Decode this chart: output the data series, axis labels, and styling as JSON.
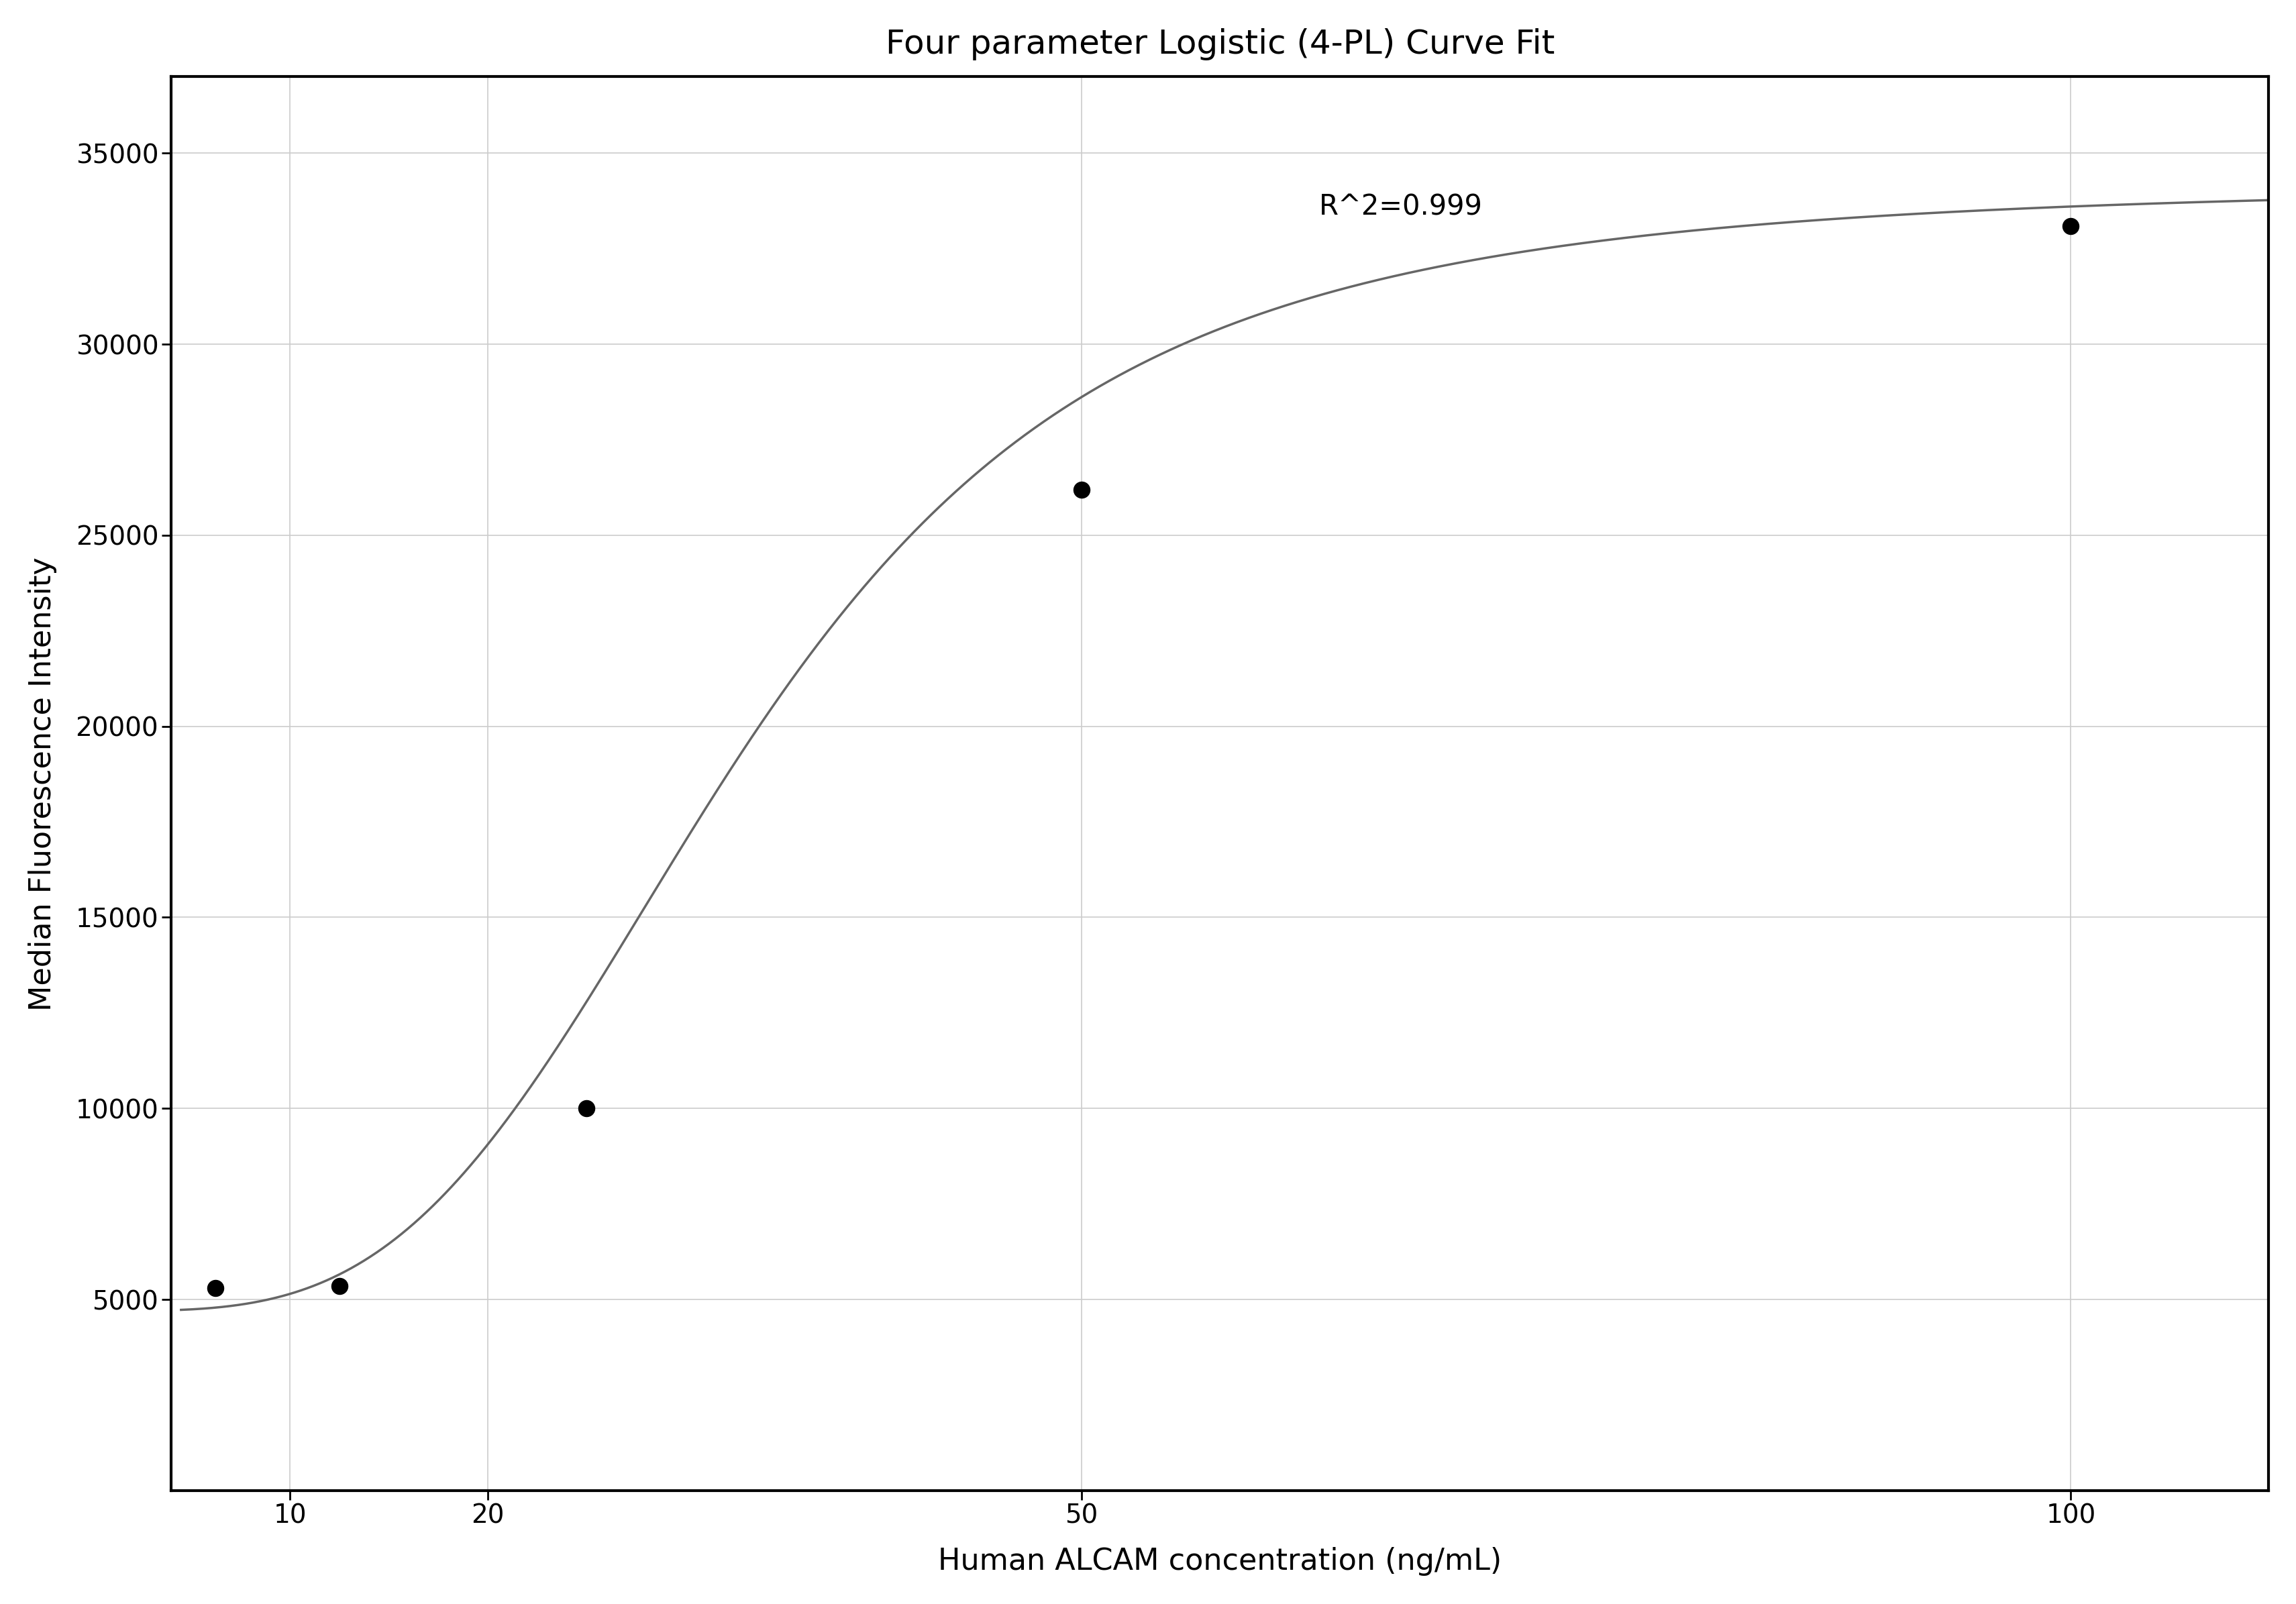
{
  "title": "Four parameter Logistic (4-PL) Curve Fit",
  "xlabel": "Human ALCAM concentration (ng/mL)",
  "ylabel": "Median Fluorescence Intensity",
  "x_data": [
    6.25,
    12.5,
    25,
    50,
    100
  ],
  "y_data": [
    5300,
    5350,
    10000,
    26200,
    33100
  ],
  "r_squared": "R^2=0.999",
  "r2_x": 62,
  "r2_y": 33600,
  "xlim": [
    4,
    110
  ],
  "ylim": [
    0,
    37000
  ],
  "yticks": [
    5000,
    10000,
    15000,
    20000,
    25000,
    30000,
    35000
  ],
  "xticks": [
    10,
    20,
    50,
    100
  ],
  "curve_color": "#666666",
  "dot_color": "#000000",
  "grid_color": "#cccccc",
  "background_color": "#ffffff",
  "title_fontsize": 36,
  "label_fontsize": 32,
  "tick_fontsize": 28,
  "annotation_fontsize": 30,
  "4pl_A": 4700,
  "4pl_B": 3.5,
  "4pl_C": 33.0,
  "4pl_D": 34200
}
